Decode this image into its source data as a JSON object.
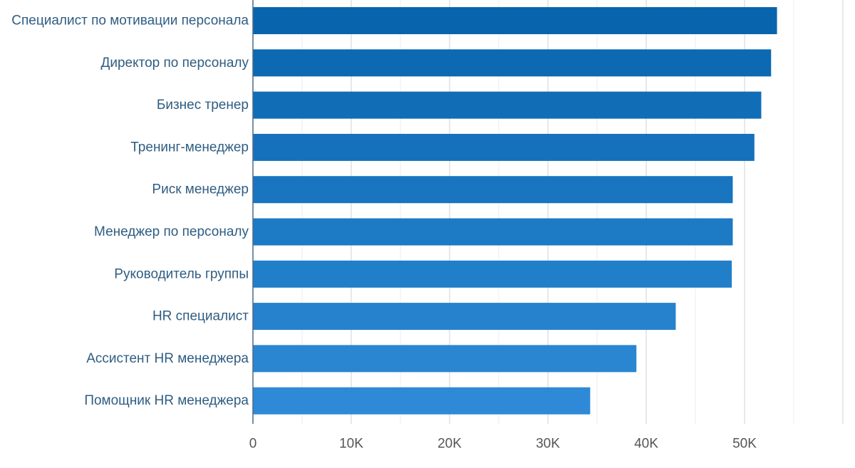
{
  "chart_data": {
    "type": "bar",
    "orientation": "horizontal",
    "categories": [
      "Специалист по мотивации персонала",
      "Директор по персоналу",
      "Бизнес тренер",
      "Тренинг-менеджер",
      "Риск менеджер",
      "Менеджер по персоналу",
      "Руководитель группы",
      "HR специалист",
      "Ассистент HR менеджера",
      "Помощник HR менеджера"
    ],
    "values": [
      53300,
      52700,
      51700,
      51000,
      48800,
      48800,
      48700,
      43000,
      39000,
      34300
    ],
    "title": "",
    "xlabel": "",
    "ylabel": "",
    "xlim": [
      0,
      60000
    ],
    "xticks": [
      0,
      10000,
      20000,
      30000,
      40000,
      50000
    ],
    "xtick_labels": [
      "0",
      "10K",
      "20K",
      "30K",
      "40K",
      "50K"
    ],
    "grid": true,
    "legend": "none",
    "colors": {
      "bar_top": "#0865ad",
      "bar_bottom": "#2e8ad6",
      "grid": "#e2e2e2",
      "axis": "#4a6a88",
      "category_text": "#2f5d82",
      "tick_text": "#555555"
    }
  }
}
